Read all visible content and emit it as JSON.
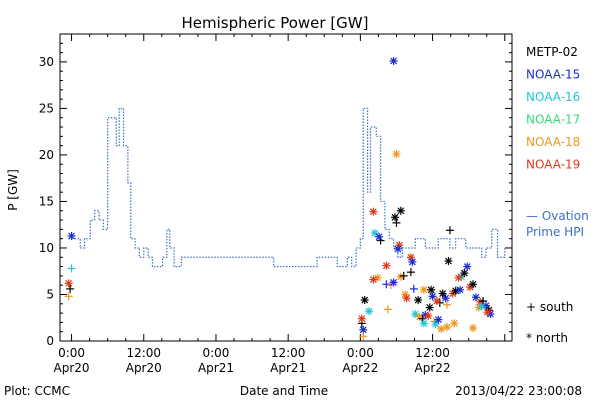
{
  "chart_data": {
    "type": "line",
    "title": "Hemispheric Power [GW]",
    "ylabel": "P [GW]",
    "xlabel": "Date and Time",
    "ylim": [
      0,
      33
    ],
    "xlim": [
      -0.08,
      3.05
    ],
    "yticks": [
      0,
      5,
      10,
      15,
      20,
      25,
      30
    ],
    "xticks": [
      {
        "value": 0.0,
        "label": "0:00",
        "sublabel": "Apr20"
      },
      {
        "value": 0.5,
        "label": "12:00",
        "sublabel": "Apr20"
      },
      {
        "value": 1.0,
        "label": "0:00",
        "sublabel": "Apr21"
      },
      {
        "value": 1.5,
        "label": "12:00",
        "sublabel": "Apr21"
      },
      {
        "value": 2.0,
        "label": "0:00",
        "sublabel": "Apr22"
      },
      {
        "value": 2.5,
        "label": "12:00",
        "sublabel": "Apr22"
      }
    ],
    "x_unit": "days since Apr20 0:00",
    "footer_left": "Plot: CCMC",
    "footer_right": "2013/04/22 23:00:08",
    "legend_satellites": [
      {
        "name": "METP-02",
        "color": "#000000"
      },
      {
        "name": "NOAA-15",
        "color": "#1a2ad0"
      },
      {
        "name": "NOAA-16",
        "color": "#22c4d8"
      },
      {
        "name": "NOAA-17",
        "color": "#38d87a"
      },
      {
        "name": "NOAA-18",
        "color": "#f0961e"
      },
      {
        "name": "NOAA-19",
        "color": "#e03a1a"
      }
    ],
    "ovation_label_1": "— Ovation",
    "ovation_label_2": "Prime HPI",
    "ovation_color": "#3a6fc8",
    "marker_legend": [
      {
        "symbol": "+",
        "label": "south"
      },
      {
        "symbol": "*",
        "label": "north"
      }
    ],
    "ovation_series": {
      "name": "Ovation Prime HPI",
      "points": [
        [
          -0.02,
          11
        ],
        [
          0.04,
          11
        ],
        [
          0.06,
          10
        ],
        [
          0.09,
          11
        ],
        [
          0.13,
          13
        ],
        [
          0.16,
          14
        ],
        [
          0.19,
          13
        ],
        [
          0.22,
          12
        ],
        [
          0.25,
          24
        ],
        [
          0.31,
          21
        ],
        [
          0.33,
          25
        ],
        [
          0.36,
          21
        ],
        [
          0.39,
          17
        ],
        [
          0.41,
          11
        ],
        [
          0.44,
          10
        ],
        [
          0.47,
          9
        ],
        [
          0.5,
          10
        ],
        [
          0.53,
          9
        ],
        [
          0.56,
          8
        ],
        [
          0.63,
          9
        ],
        [
          0.66,
          12
        ],
        [
          0.68,
          10
        ],
        [
          0.71,
          8
        ],
        [
          0.74,
          8
        ],
        [
          0.76,
          9
        ],
        [
          1.1,
          9
        ],
        [
          1.4,
          8
        ],
        [
          1.7,
          9
        ],
        [
          1.84,
          8
        ],
        [
          1.88,
          8
        ],
        [
          1.91,
          9
        ],
        [
          1.94,
          8
        ],
        [
          1.97,
          10
        ],
        [
          2.0,
          11
        ],
        [
          2.02,
          25
        ],
        [
          2.05,
          16
        ],
        [
          2.07,
          23
        ],
        [
          2.11,
          22
        ],
        [
          2.14,
          15
        ],
        [
          2.17,
          12
        ],
        [
          2.2,
          11
        ],
        [
          2.23,
          10
        ],
        [
          2.26,
          9
        ],
        [
          2.29,
          10
        ],
        [
          2.34,
          10
        ],
        [
          2.38,
          11
        ],
        [
          2.45,
          10
        ],
        [
          2.5,
          10
        ],
        [
          2.54,
          11
        ],
        [
          2.62,
          10
        ],
        [
          2.66,
          11
        ],
        [
          2.73,
          10
        ],
        [
          2.79,
          10
        ],
        [
          2.84,
          9
        ],
        [
          2.87,
          10
        ],
        [
          2.91,
          12
        ],
        [
          2.95,
          9
        ],
        [
          3.0,
          10
        ]
      ]
    },
    "satellite_passes": [
      {
        "sat": "NOAA-15",
        "hemi": "north",
        "x": 0.0,
        "y": 11.3
      },
      {
        "sat": "NOAA-16",
        "hemi": "south",
        "x": 0.0,
        "y": 7.8
      },
      {
        "sat": "NOAA-19",
        "hemi": "north",
        "x": -0.02,
        "y": 6.2
      },
      {
        "sat": "NOAA-18",
        "hemi": "south",
        "x": -0.02,
        "y": 4.8
      },
      {
        "sat": "METP-02",
        "hemi": "south",
        "x": -0.01,
        "y": 5.6
      },
      {
        "sat": "NOAA-15",
        "hemi": "north",
        "x": 2.23,
        "y": 30.1
      },
      {
        "sat": "NOAA-18",
        "hemi": "north",
        "x": 2.25,
        "y": 20.1
      },
      {
        "sat": "METP-02",
        "hemi": "north",
        "x": 2.28,
        "y": 14.0
      },
      {
        "sat": "NOAA-19",
        "hemi": "north",
        "x": 2.09,
        "y": 13.9
      },
      {
        "sat": "METP-02",
        "hemi": "north",
        "x": 2.24,
        "y": 13.3
      },
      {
        "sat": "METP-02",
        "hemi": "south",
        "x": 2.25,
        "y": 12.7
      },
      {
        "sat": "NOAA-16",
        "hemi": "north",
        "x": 2.1,
        "y": 11.6
      },
      {
        "sat": "METP-02",
        "hemi": "south",
        "x": 2.14,
        "y": 10.8
      },
      {
        "sat": "NOAA-15",
        "hemi": "north",
        "x": 2.13,
        "y": 11.2
      },
      {
        "sat": "METP-02",
        "hemi": "south",
        "x": 2.62,
        "y": 11.9
      },
      {
        "sat": "NOAA-19",
        "hemi": "north",
        "x": 2.27,
        "y": 10.3
      },
      {
        "sat": "NOAA-15",
        "hemi": "north",
        "x": 2.26,
        "y": 9.9
      },
      {
        "sat": "NOAA-19",
        "hemi": "north",
        "x": 2.35,
        "y": 9.0
      },
      {
        "sat": "METP-02",
        "hemi": "north",
        "x": 2.61,
        "y": 8.6
      },
      {
        "sat": "NOAA-19",
        "hemi": "north",
        "x": 2.18,
        "y": 8.1
      },
      {
        "sat": "NOAA-15",
        "hemi": "north",
        "x": 2.36,
        "y": 8.5
      },
      {
        "sat": "METP-02",
        "hemi": "south",
        "x": 2.35,
        "y": 7.4
      },
      {
        "sat": "NOAA-18",
        "hemi": "north",
        "x": 2.12,
        "y": 6.8
      },
      {
        "sat": "NOAA-19",
        "hemi": "north",
        "x": 2.09,
        "y": 6.6
      },
      {
        "sat": "NOAA-15",
        "hemi": "south",
        "x": 2.18,
        "y": 6.1
      },
      {
        "sat": "NOAA-18",
        "hemi": "south",
        "x": 2.21,
        "y": 6.0
      },
      {
        "sat": "NOAA-18",
        "hemi": "north",
        "x": 2.28,
        "y": 6.9
      },
      {
        "sat": "METP-02",
        "hemi": "south",
        "x": 2.3,
        "y": 7.0
      },
      {
        "sat": "NOAA-15",
        "hemi": "north",
        "x": 2.23,
        "y": 6.3
      },
      {
        "sat": "NOAA-16",
        "hemi": "north",
        "x": 2.7,
        "y": 6.9
      },
      {
        "sat": "METP-02",
        "hemi": "north",
        "x": 2.72,
        "y": 7.3
      },
      {
        "sat": "NOAA-15",
        "hemi": "north",
        "x": 2.74,
        "y": 8.0
      },
      {
        "sat": "NOAA-19",
        "hemi": "north",
        "x": 2.68,
        "y": 6.8
      },
      {
        "sat": "NOAA-18",
        "hemi": "north",
        "x": 2.31,
        "y": 5.0
      },
      {
        "sat": "NOAA-19",
        "hemi": "north",
        "x": 2.32,
        "y": 4.6
      },
      {
        "sat": "METP-02",
        "hemi": "north",
        "x": 2.4,
        "y": 4.4
      },
      {
        "sat": "NOAA-15",
        "hemi": "south",
        "x": 2.37,
        "y": 5.6
      },
      {
        "sat": "NOAA-18",
        "hemi": "north",
        "x": 2.44,
        "y": 5.5
      },
      {
        "sat": "METP-02",
        "hemi": "north",
        "x": 2.49,
        "y": 5.5
      },
      {
        "sat": "NOAA-15",
        "hemi": "north",
        "x": 2.5,
        "y": 4.8
      },
      {
        "sat": "METP-02",
        "hemi": "south",
        "x": 2.55,
        "y": 4.1
      },
      {
        "sat": "NOAA-19",
        "hemi": "north",
        "x": 2.53,
        "y": 4.3
      },
      {
        "sat": "NOAA-15",
        "hemi": "north",
        "x": 2.59,
        "y": 4.6
      },
      {
        "sat": "METP-02",
        "hemi": "north",
        "x": 2.57,
        "y": 5.1
      },
      {
        "sat": "NOAA-18",
        "hemi": "south",
        "x": 2.6,
        "y": 3.9
      },
      {
        "sat": "NOAA-19",
        "hemi": "north",
        "x": 2.64,
        "y": 5.1
      },
      {
        "sat": "METP-02",
        "hemi": "north",
        "x": 2.66,
        "y": 5.4
      },
      {
        "sat": "NOAA-15",
        "hemi": "north",
        "x": 2.69,
        "y": 5.5
      },
      {
        "sat": "NOAA-19",
        "hemi": "north",
        "x": 2.76,
        "y": 5.8
      },
      {
        "sat": "METP-02",
        "hemi": "north",
        "x": 2.78,
        "y": 6.1
      },
      {
        "sat": "NOAA-15",
        "hemi": "north",
        "x": 2.8,
        "y": 4.7
      },
      {
        "sat": "NOAA-19",
        "hemi": "north",
        "x": 2.83,
        "y": 4.2
      },
      {
        "sat": "METP-02",
        "hemi": "south",
        "x": 2.85,
        "y": 4.3
      },
      {
        "sat": "NOAA-15",
        "hemi": "north",
        "x": 2.87,
        "y": 3.8
      },
      {
        "sat": "NOAA-18",
        "hemi": "north",
        "x": 2.82,
        "y": 3.6
      },
      {
        "sat": "METP-02",
        "hemi": "north",
        "x": 2.89,
        "y": 3.3
      },
      {
        "sat": "NOAA-15",
        "hemi": "north",
        "x": 2.9,
        "y": 2.9
      },
      {
        "sat": "NOAA-19",
        "hemi": "north",
        "x": 2.88,
        "y": 3.1
      },
      {
        "sat": "NOAA-16",
        "hemi": "north",
        "x": 2.38,
        "y": 2.9
      },
      {
        "sat": "NOAA-18",
        "hemi": "north",
        "x": 2.41,
        "y": 2.6
      },
      {
        "sat": "METP-02",
        "hemi": "south",
        "x": 2.43,
        "y": 2.4
      },
      {
        "sat": "NOAA-15",
        "hemi": "north",
        "x": 2.45,
        "y": 2.8
      },
      {
        "sat": "NOAA-19",
        "hemi": "north",
        "x": 2.47,
        "y": 2.7
      },
      {
        "sat": "METP-02",
        "hemi": "north",
        "x": 2.48,
        "y": 3.6
      },
      {
        "sat": "NOAA-18",
        "hemi": "south",
        "x": 2.51,
        "y": 2.1
      },
      {
        "sat": "NOAA-16",
        "hemi": "north",
        "x": 2.52,
        "y": 1.8
      },
      {
        "sat": "NOAA-15",
        "hemi": "north",
        "x": 2.54,
        "y": 2.3
      },
      {
        "sat": "NOAA-18",
        "hemi": "north",
        "x": 2.56,
        "y": 1.3
      },
      {
        "sat": "NOAA-18",
        "hemi": "north",
        "x": 2.6,
        "y": 1.5
      },
      {
        "sat": "NOAA-18",
        "hemi": "north",
        "x": 2.65,
        "y": 1.9
      },
      {
        "sat": "NOAA-18",
        "hemi": "north",
        "x": 2.78,
        "y": 1.4
      },
      {
        "sat": "NOAA-18",
        "hemi": "south",
        "x": 2.19,
        "y": 3.4
      },
      {
        "sat": "METP-02",
        "hemi": "south",
        "x": 2.01,
        "y": 1.9
      },
      {
        "sat": "NOAA-19",
        "hemi": "north",
        "x": 2.01,
        "y": 2.4
      },
      {
        "sat": "NOAA-15",
        "hemi": "north",
        "x": 2.02,
        "y": 1.2
      },
      {
        "sat": "METP-02",
        "hemi": "north",
        "x": 2.03,
        "y": 4.4
      },
      {
        "sat": "NOAA-18",
        "hemi": "south",
        "x": 2.02,
        "y": 0.5
      },
      {
        "sat": "NOAA-16",
        "hemi": "north",
        "x": 2.06,
        "y": 3.2
      },
      {
        "sat": "NOAA-16",
        "hemi": "north",
        "x": 2.44,
        "y": 1.9
      },
      {
        "sat": "NOAA-16",
        "hemi": "north",
        "x": 2.84,
        "y": 3.7
      }
    ]
  }
}
